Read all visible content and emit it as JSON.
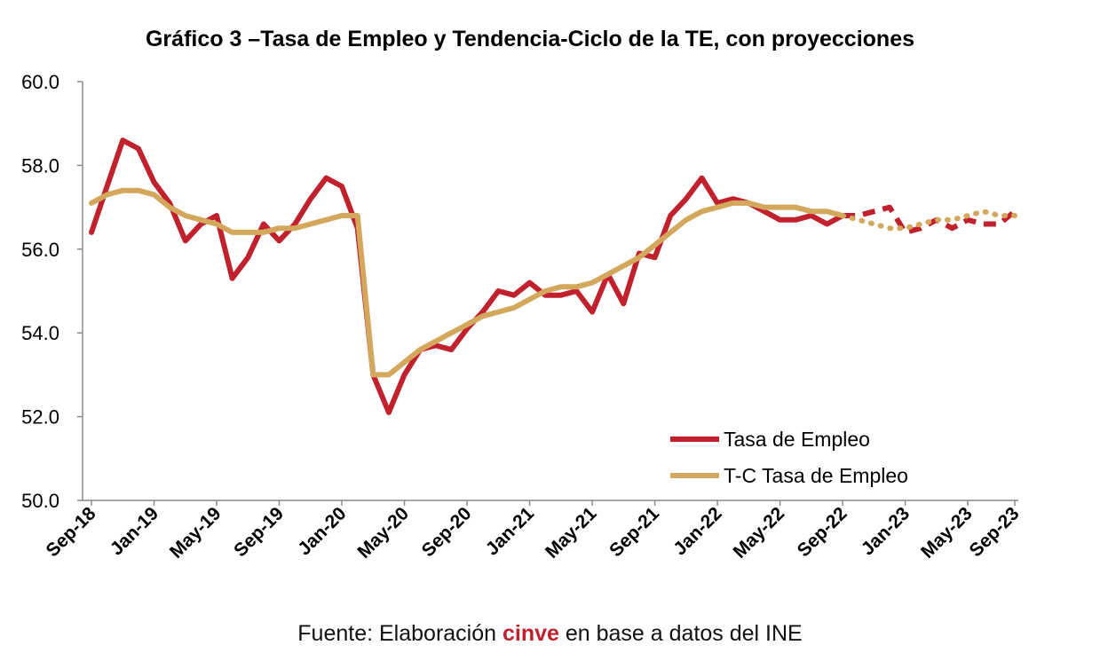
{
  "chart_data": {
    "type": "line",
    "title": "Gráfico 3 –Tasa de Empleo y Tendencia-Ciclo de la TE, con proyecciones",
    "xlabel": "",
    "ylabel": "",
    "ylim": [
      50,
      60
    ],
    "yticks": [
      "50.0",
      "52.0",
      "54.0",
      "56.0",
      "58.0",
      "60.0"
    ],
    "ytick_values": [
      50,
      52,
      54,
      56,
      58,
      60
    ],
    "xtick_labels": [
      "Sep-18",
      "Jan-19",
      "May-19",
      "Sep-19",
      "Jan-20",
      "May-20",
      "Sep-20",
      "Jan-21",
      "May-21",
      "Sep-21",
      "Jan-22",
      "May-22",
      "Sep-22",
      "Jan-23",
      "May-23",
      "Sep-23"
    ],
    "legend_position": "bottom-right",
    "grid": false,
    "series": [
      {
        "name": "Tasa de Empleo",
        "color": "#c0212c",
        "style": "solid",
        "projection_style": "dashed",
        "projection_start_index": 48,
        "values": [
          56.4,
          57.5,
          58.6,
          58.4,
          57.6,
          57.1,
          56.2,
          56.6,
          56.8,
          55.3,
          55.8,
          56.6,
          56.2,
          56.6,
          57.2,
          57.7,
          57.5,
          56.5,
          53.0,
          52.1,
          53.0,
          53.6,
          53.7,
          53.6,
          54.1,
          54.5,
          55.0,
          54.9,
          55.2,
          54.9,
          54.9,
          55.0,
          54.5,
          55.4,
          54.7,
          55.9,
          55.8,
          56.8,
          57.2,
          57.7,
          57.1,
          57.2,
          57.1,
          56.9,
          56.7,
          56.7,
          56.8,
          56.6,
          56.8,
          56.8,
          56.9,
          57.0,
          56.4,
          56.5,
          56.7,
          56.5,
          56.7,
          56.6,
          56.6,
          56.9
        ]
      },
      {
        "name": "T-C Tasa de Empleo",
        "color": "#d4a85c",
        "style": "solid",
        "projection_style": "dotted",
        "projection_start_index": 48,
        "values": [
          57.1,
          57.3,
          57.4,
          57.4,
          57.3,
          57.0,
          56.8,
          56.7,
          56.6,
          56.4,
          56.4,
          56.4,
          56.5,
          56.5,
          56.6,
          56.7,
          56.8,
          56.8,
          53.0,
          53.0,
          53.3,
          53.6,
          53.8,
          54.0,
          54.2,
          54.4,
          54.5,
          54.6,
          54.8,
          55.0,
          55.1,
          55.1,
          55.2,
          55.4,
          55.6,
          55.8,
          56.1,
          56.4,
          56.7,
          56.9,
          57.0,
          57.1,
          57.1,
          57.0,
          57.0,
          57.0,
          56.9,
          56.9,
          56.8,
          56.7,
          56.6,
          56.5,
          56.5,
          56.6,
          56.7,
          56.7,
          56.8,
          56.9,
          56.8,
          56.8
        ]
      }
    ]
  },
  "source": {
    "prefix": "Fuente: Elaboración ",
    "brand": "cinve",
    "suffix": " en base a datos del INE"
  }
}
